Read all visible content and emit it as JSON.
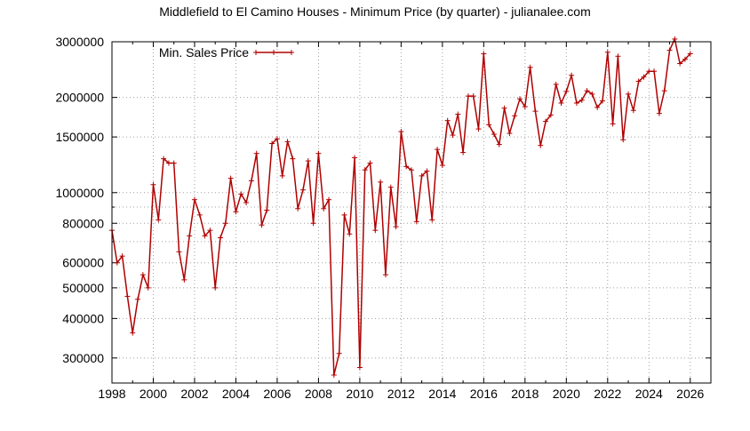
{
  "chart_data": {
    "type": "line",
    "title": "Middlefield to El Camino Houses - Minimum Price (by quarter) - julianalee.com",
    "xlabel": "",
    "ylabel": "",
    "y_scale": "log",
    "xlim": [
      1998,
      2027
    ],
    "ylim": [
      250000,
      3000000
    ],
    "grid": true,
    "legend_position": "top-left",
    "x_ticks": [
      "1998",
      "2000",
      "2002",
      "2004",
      "2006",
      "2008",
      "2010",
      "2012",
      "2014",
      "2016",
      "2018",
      "2020",
      "2022",
      "2024",
      "2026"
    ],
    "y_ticks": [
      "3000000",
      "2000000",
      "1500000",
      "1000000",
      "800000",
      "600000",
      "500000",
      "400000",
      "300000"
    ],
    "series": [
      {
        "name": "Min. Sales Price",
        "color": "#b00000",
        "points": [
          [
            1998.0,
            760000
          ],
          [
            1998.25,
            600000
          ],
          [
            1998.5,
            630000
          ],
          [
            1998.75,
            470000
          ],
          [
            1999.0,
            360000
          ],
          [
            1999.25,
            460000
          ],
          [
            1999.5,
            550000
          ],
          [
            1999.75,
            500000
          ],
          [
            2000.0,
            1060000
          ],
          [
            2000.25,
            820000
          ],
          [
            2000.5,
            1280000
          ],
          [
            2000.75,
            1240000
          ],
          [
            2001.0,
            1240000
          ],
          [
            2001.25,
            650000
          ],
          [
            2001.5,
            530000
          ],
          [
            2001.75,
            730000
          ],
          [
            2002.0,
            950000
          ],
          [
            2002.25,
            850000
          ],
          [
            2002.5,
            730000
          ],
          [
            2002.75,
            760000
          ],
          [
            2003.0,
            500000
          ],
          [
            2003.25,
            720000
          ],
          [
            2003.5,
            800000
          ],
          [
            2003.75,
            1110000
          ],
          [
            2004.0,
            870000
          ],
          [
            2004.25,
            990000
          ],
          [
            2004.5,
            930000
          ],
          [
            2004.75,
            1090000
          ],
          [
            2005.0,
            1330000
          ],
          [
            2005.25,
            790000
          ],
          [
            2005.5,
            880000
          ],
          [
            2005.75,
            1430000
          ],
          [
            2006.0,
            1480000
          ],
          [
            2006.25,
            1130000
          ],
          [
            2006.5,
            1450000
          ],
          [
            2006.75,
            1280000
          ],
          [
            2007.0,
            890000
          ],
          [
            2007.25,
            1020000
          ],
          [
            2007.5,
            1260000
          ],
          [
            2007.75,
            800000
          ],
          [
            2008.0,
            1330000
          ],
          [
            2008.25,
            890000
          ],
          [
            2008.5,
            950000
          ],
          [
            2008.75,
            265000
          ],
          [
            2009.0,
            310000
          ],
          [
            2009.25,
            850000
          ],
          [
            2009.5,
            740000
          ],
          [
            2009.75,
            1290000
          ],
          [
            2010.0,
            280000
          ],
          [
            2010.25,
            1180000
          ],
          [
            2010.5,
            1240000
          ],
          [
            2010.75,
            760000
          ],
          [
            2011.0,
            1080000
          ],
          [
            2011.25,
            550000
          ],
          [
            2011.5,
            1040000
          ],
          [
            2011.75,
            780000
          ],
          [
            2012.0,
            1560000
          ],
          [
            2012.25,
            1210000
          ],
          [
            2012.5,
            1180000
          ],
          [
            2012.75,
            810000
          ],
          [
            2013.0,
            1130000
          ],
          [
            2013.25,
            1170000
          ],
          [
            2013.5,
            820000
          ],
          [
            2013.75,
            1370000
          ],
          [
            2014.0,
            1220000
          ],
          [
            2014.25,
            1690000
          ],
          [
            2014.5,
            1520000
          ],
          [
            2014.75,
            1770000
          ],
          [
            2015.0,
            1340000
          ],
          [
            2015.25,
            2020000
          ],
          [
            2015.5,
            2020000
          ],
          [
            2015.75,
            1590000
          ],
          [
            2016.0,
            2750000
          ],
          [
            2016.25,
            1640000
          ],
          [
            2016.5,
            1530000
          ],
          [
            2016.75,
            1420000
          ],
          [
            2017.0,
            1850000
          ],
          [
            2017.25,
            1540000
          ],
          [
            2017.5,
            1750000
          ],
          [
            2017.75,
            1980000
          ],
          [
            2018.0,
            1870000
          ],
          [
            2018.25,
            2490000
          ],
          [
            2018.5,
            1810000
          ],
          [
            2018.75,
            1410000
          ],
          [
            2019.0,
            1680000
          ],
          [
            2019.25,
            1760000
          ],
          [
            2019.5,
            2200000
          ],
          [
            2019.75,
            1920000
          ],
          [
            2020.0,
            2090000
          ],
          [
            2020.25,
            2350000
          ],
          [
            2020.5,
            1920000
          ],
          [
            2020.75,
            1960000
          ],
          [
            2021.0,
            2100000
          ],
          [
            2021.25,
            2050000
          ],
          [
            2021.5,
            1860000
          ],
          [
            2021.75,
            1950000
          ],
          [
            2022.0,
            2780000
          ],
          [
            2022.25,
            1650000
          ],
          [
            2022.5,
            2700000
          ],
          [
            2022.75,
            1470000
          ],
          [
            2023.0,
            2050000
          ],
          [
            2023.25,
            1820000
          ],
          [
            2023.5,
            2250000
          ],
          [
            2023.75,
            2320000
          ],
          [
            2024.0,
            2420000
          ],
          [
            2024.25,
            2420000
          ],
          [
            2024.5,
            1780000
          ],
          [
            2024.75,
            2100000
          ],
          [
            2025.0,
            2820000
          ],
          [
            2025.25,
            3060000
          ],
          [
            2025.5,
            2560000
          ],
          [
            2025.75,
            2640000
          ],
          [
            2026.0,
            2750000
          ]
        ]
      }
    ]
  }
}
